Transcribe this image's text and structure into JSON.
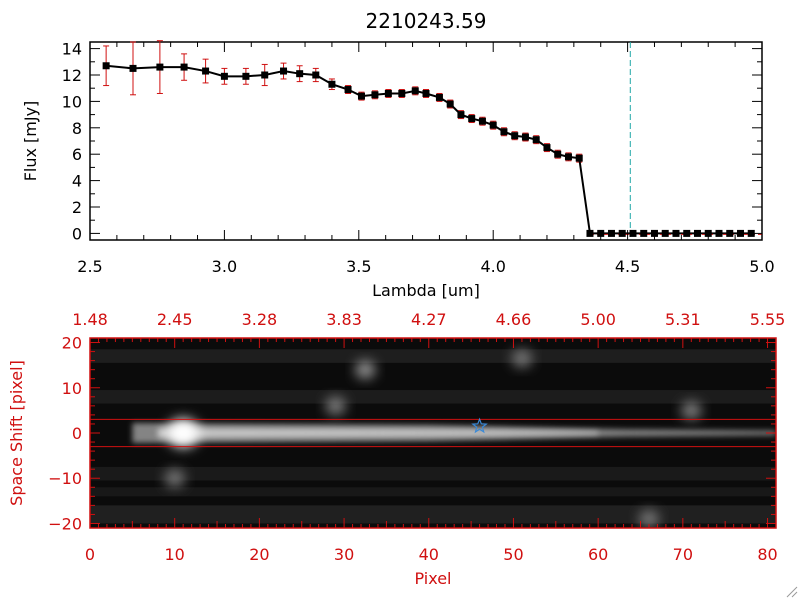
{
  "chart_data": [
    {
      "type": "line",
      "title": "2210243.59",
      "xlabel": "Lambda [um]",
      "ylabel": "Flux [mJy]",
      "xlim": [
        2.5,
        5.0
      ],
      "ylim": [
        -0.5,
        14.5
      ],
      "xticks": [
        2.5,
        3.0,
        3.5,
        4.0,
        4.5,
        5.0
      ],
      "xtick_labels": [
        "2.5",
        "3.0",
        "3.5",
        "4.0",
        "4.5",
        "5.0"
      ],
      "yticks": [
        0,
        2,
        4,
        6,
        8,
        10,
        12,
        14
      ],
      "ytick_labels": [
        "0",
        "2",
        "4",
        "6",
        "8",
        "10",
        "12",
        "14"
      ],
      "series": [
        {
          "name": "flux",
          "x": [
            2.56,
            2.66,
            2.76,
            2.85,
            2.93,
            3.0,
            3.08,
            3.15,
            3.22,
            3.28,
            3.34,
            3.4,
            3.46,
            3.51,
            3.56,
            3.61,
            3.66,
            3.71,
            3.75,
            3.8,
            3.84,
            3.88,
            3.92,
            3.96,
            4.0,
            4.04,
            4.08,
            4.12,
            4.16,
            4.2,
            4.24,
            4.28,
            4.32,
            4.36,
            4.4,
            4.44,
            4.48,
            4.52,
            4.56,
            4.6,
            4.64,
            4.68,
            4.72,
            4.76,
            4.8,
            4.84,
            4.88,
            4.92,
            4.96
          ],
          "y": [
            12.7,
            12.5,
            12.6,
            12.6,
            12.3,
            11.9,
            11.9,
            12.0,
            12.3,
            12.1,
            12.0,
            11.3,
            10.9,
            10.4,
            10.5,
            10.6,
            10.6,
            10.8,
            10.6,
            10.3,
            9.8,
            9.0,
            8.7,
            8.5,
            8.2,
            7.7,
            7.4,
            7.3,
            7.1,
            6.5,
            6.0,
            5.8,
            5.7,
            0,
            0,
            0,
            0,
            0,
            0,
            0,
            0,
            0,
            0,
            0,
            0,
            0,
            0,
            0,
            0
          ],
          "err": [
            1.5,
            2.0,
            2.0,
            1.0,
            0.9,
            0.6,
            0.6,
            0.8,
            0.6,
            0.6,
            0.5,
            0.4,
            0.3,
            0.3,
            0.3,
            0.3,
            0.3,
            0.3,
            0.3,
            0.3,
            0.3,
            0.3,
            0.3,
            0.3,
            0.3,
            0.3,
            0.3,
            0.3,
            0.3,
            0.3,
            0.3,
            0.3,
            0.3,
            0,
            0,
            0,
            0,
            0,
            0,
            0,
            0,
            0,
            0,
            0,
            0,
            0,
            0,
            0,
            0
          ]
        }
      ],
      "vline_x": 4.51,
      "colors": {
        "line": "#000000",
        "errorbar": "#d01010",
        "vline": "#20a8a8"
      }
    },
    {
      "type": "heatmap",
      "xlabel": "Pixel",
      "ylabel": "Space Shift [pixel]",
      "xlim": [
        0,
        81
      ],
      "ylim": [
        -21,
        21
      ],
      "xticks": [
        0,
        10,
        20,
        30,
        40,
        50,
        60,
        70,
        80
      ],
      "xtick_labels": [
        "0",
        "10",
        "20",
        "30",
        "40",
        "50",
        "60",
        "70",
        "80"
      ],
      "yticks": [
        -20,
        -10,
        0,
        10,
        20
      ],
      "ytick_labels": [
        "−20",
        "−10",
        "0",
        "10",
        "20"
      ],
      "top_axis_labels": [
        "1.48",
        "2.45",
        "3.28",
        "3.83",
        "4.27",
        "4.66",
        "5.00",
        "5.31",
        "5.55"
      ],
      "extraction_band": [
        -3,
        3
      ],
      "star_marker": {
        "x": 46,
        "y": 1.5
      },
      "sources": [
        {
          "x": 11,
          "y": 0,
          "intensity": 1.0
        },
        {
          "x": 32.5,
          "y": 14,
          "intensity": 0.45
        },
        {
          "x": 29,
          "y": 6,
          "intensity": 0.35
        },
        {
          "x": 51,
          "y": 16.5,
          "intensity": 0.3
        },
        {
          "x": 71,
          "y": 5,
          "intensity": 0.35
        },
        {
          "x": 66,
          "y": -19,
          "intensity": 0.3
        },
        {
          "x": 10,
          "y": -10,
          "intensity": 0.3
        }
      ],
      "colors": {
        "axis": "#d01010",
        "star": "#3a8ad8"
      }
    }
  ]
}
